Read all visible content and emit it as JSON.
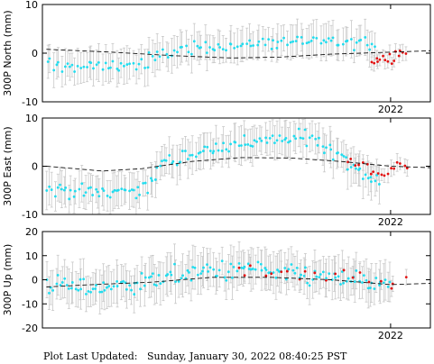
{
  "footer": {
    "label": "Plot Last Updated:",
    "timestamp": "Sunday, January 30, 2022 08:40:25 PST"
  },
  "colors": {
    "points": "#22dcee",
    "recent_points": "#e21010",
    "error_bars": "#c8c8c8",
    "model": "#111111"
  },
  "chart_data": [
    {
      "type": "scatter",
      "ylabel": "300P North (mm)",
      "ylim": [
        -10,
        10
      ],
      "yticks": [
        -10,
        0,
        10
      ],
      "xticks": [
        {
          "value": 2022.0,
          "label": "2022"
        }
      ],
      "x_range": [
        2020.25,
        2022.2
      ],
      "series": [
        {
          "role": "observations",
          "x_start": 2020.27,
          "x_end": 2021.93,
          "y_at": [
            [
              2020.27,
              -2.5
            ],
            [
              2020.5,
              -2.8
            ],
            [
              2020.75,
              -2.2
            ],
            [
              2020.95,
              1.0
            ],
            [
              2021.2,
              1.5
            ],
            [
              2021.5,
              2.5
            ],
            [
              2021.75,
              2.2
            ],
            [
              2021.93,
              2.0
            ]
          ],
          "scatter": 1.4,
          "error": 3.0,
          "count": 120
        },
        {
          "role": "recent",
          "x_start": 2021.9,
          "x_end": 2022.08,
          "y_at": [
            [
              2021.9,
              -1.5
            ],
            [
              2021.95,
              -1.2
            ],
            [
              2022.0,
              -1.0
            ],
            [
              2022.05,
              0.5
            ],
            [
              2022.08,
              -0.5
            ]
          ],
          "scatter": 1.2,
          "error": 1.5,
          "count": 16
        },
        {
          "role": "model",
          "y_at": [
            [
              2020.27,
              0.8
            ],
            [
              2020.6,
              0.2
            ],
            [
              2020.9,
              -0.5
            ],
            [
              2021.2,
              -1.0
            ],
            [
              2021.45,
              -0.8
            ],
            [
              2021.7,
              -0.2
            ],
            [
              2022.0,
              0.2
            ],
            [
              2022.2,
              0.5
            ]
          ]
        }
      ]
    },
    {
      "type": "scatter",
      "ylabel": "300P East (mm)",
      "ylim": [
        -10,
        10
      ],
      "yticks": [
        -10,
        0,
        10
      ],
      "xticks": [
        {
          "value": 2022.0,
          "label": "2022"
        }
      ],
      "x_range": [
        2020.25,
        2022.2
      ],
      "series": [
        {
          "role": "observations",
          "x_start": 2020.27,
          "x_end": 2021.95,
          "y_at": [
            [
              2020.27,
              -4.5
            ],
            [
              2020.5,
              -5.5
            ],
            [
              2020.72,
              -4.8
            ],
            [
              2020.8,
              -4.0
            ],
            [
              2020.83,
              0.0
            ],
            [
              2021.0,
              2.5
            ],
            [
              2021.2,
              4.5
            ],
            [
              2021.45,
              5.5
            ],
            [
              2021.6,
              6.0
            ],
            [
              2021.75,
              2.5
            ],
            [
              2021.85,
              -1.5
            ],
            [
              2021.95,
              -3.0
            ]
          ],
          "scatter": 1.6,
          "error": 3.2,
          "count": 140
        },
        {
          "role": "recent",
          "x_start": 2021.78,
          "x_end": 2022.1,
          "y_at": [
            [
              2021.78,
              1.5
            ],
            [
              2021.85,
              0.5
            ],
            [
              2021.95,
              -2.0
            ],
            [
              2022.05,
              0.5
            ],
            [
              2022.1,
              -0.5
            ]
          ],
          "scatter": 1.2,
          "error": 1.5,
          "count": 18
        },
        {
          "role": "model",
          "y_at": [
            [
              2020.27,
              0.0
            ],
            [
              2020.55,
              -1.0
            ],
            [
              2020.75,
              -0.5
            ],
            [
              2021.0,
              1.0
            ],
            [
              2021.25,
              1.8
            ],
            [
              2021.5,
              1.7
            ],
            [
              2021.75,
              1.0
            ],
            [
              2022.0,
              0.0
            ],
            [
              2022.2,
              -0.3
            ]
          ]
        }
      ]
    },
    {
      "type": "scatter",
      "ylabel": "300P Up (mm)",
      "ylim": [
        -20,
        20
      ],
      "yticks": [
        -20,
        -10,
        0,
        10,
        20
      ],
      "xticks": [
        {
          "value": 2022.0,
          "label": "2022"
        }
      ],
      "x_range": [
        2020.25,
        2022.2
      ],
      "series": [
        {
          "role": "observations",
          "x_start": 2020.27,
          "x_end": 2022.0,
          "y_at": [
            [
              2020.27,
              -2.0
            ],
            [
              2020.5,
              -3.5
            ],
            [
              2020.75,
              -1.0
            ],
            [
              2021.0,
              3.0
            ],
            [
              2021.25,
              4.5
            ],
            [
              2021.5,
              2.0
            ],
            [
              2021.75,
              0.5
            ],
            [
              2022.0,
              -2.0
            ]
          ],
          "scatter": 4.0,
          "error": 7.0,
          "count": 160
        },
        {
          "role": "recent",
          "x_start": 2021.2,
          "x_end": 2022.1,
          "y_at": [
            [
              2021.2,
              3.0
            ],
            [
              2021.6,
              1.0
            ],
            [
              2021.85,
              2.0
            ],
            [
              2022.0,
              -2.0
            ],
            [
              2022.1,
              0.0
            ]
          ],
          "scatter": 3.0,
          "error": 4.0,
          "count": 20
        },
        {
          "role": "model",
          "y_at": [
            [
              2020.27,
              -3.0
            ],
            [
              2020.5,
              -2.0
            ],
            [
              2020.8,
              -1.0
            ],
            [
              2021.1,
              1.0
            ],
            [
              2021.4,
              1.0
            ],
            [
              2021.7,
              0.0
            ],
            [
              2022.0,
              -2.0
            ],
            [
              2022.2,
              -1.5
            ]
          ]
        }
      ]
    }
  ]
}
